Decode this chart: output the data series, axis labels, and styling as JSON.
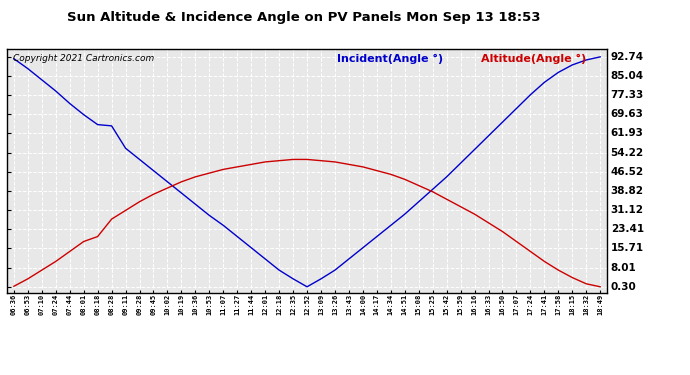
{
  "title": "Sun Altitude & Incidence Angle on PV Panels Mon Sep 13 18:53",
  "copyright": "Copyright 2021 Cartronics.com",
  "legend_incident": "Incident(Angle °)",
  "legend_altitude": "Altitude(Angle °)",
  "incident_color": "#0000cc",
  "altitude_color": "#cc0000",
  "background_color": "#ffffff",
  "plot_bg_color": "#e8e8e8",
  "grid_color": "#ffffff",
  "yticks": [
    0.3,
    8.01,
    15.71,
    23.41,
    31.12,
    38.82,
    46.52,
    54.22,
    61.93,
    69.63,
    77.33,
    85.04,
    92.74
  ],
  "ymin": -2,
  "ymax": 96,
  "xtick_labels": [
    "06:36",
    "06:53",
    "07:10",
    "07:24",
    "07:44",
    "08:01",
    "08:18",
    "08:28",
    "09:11",
    "09:28",
    "09:45",
    "10:02",
    "10:19",
    "10:36",
    "10:53",
    "11:07",
    "11:27",
    "11:44",
    "12:01",
    "12:18",
    "12:35",
    "12:52",
    "13:09",
    "13:26",
    "13:43",
    "14:00",
    "14:17",
    "14:34",
    "14:51",
    "15:08",
    "15:25",
    "15:42",
    "15:59",
    "16:16",
    "16:33",
    "16:50",
    "17:07",
    "17:24",
    "17:41",
    "17:58",
    "18:15",
    "18:32",
    "18:49"
  ],
  "incident_values": [
    92.0,
    88.0,
    83.5,
    79.0,
    74.0,
    69.5,
    65.5,
    65.0,
    56.0,
    51.5,
    47.0,
    42.5,
    38.0,
    33.5,
    29.0,
    25.0,
    20.5,
    16.0,
    11.5,
    7.0,
    3.5,
    0.3,
    3.5,
    7.0,
    11.5,
    16.0,
    20.5,
    25.0,
    29.5,
    34.5,
    39.5,
    44.5,
    50.0,
    55.5,
    61.0,
    66.5,
    72.0,
    77.5,
    82.5,
    86.5,
    89.5,
    91.5,
    92.74
  ],
  "altitude_values": [
    0.5,
    3.5,
    7.0,
    10.5,
    14.5,
    18.5,
    20.5,
    27.5,
    31.0,
    34.5,
    37.5,
    40.0,
    42.5,
    44.5,
    46.0,
    47.5,
    48.5,
    49.5,
    50.5,
    51.0,
    51.5,
    51.5,
    51.0,
    50.5,
    49.5,
    48.5,
    47.0,
    45.5,
    43.5,
    41.0,
    38.5,
    35.5,
    32.5,
    29.5,
    26.0,
    22.5,
    18.5,
    14.5,
    10.5,
    7.0,
    4.0,
    1.5,
    0.3
  ]
}
